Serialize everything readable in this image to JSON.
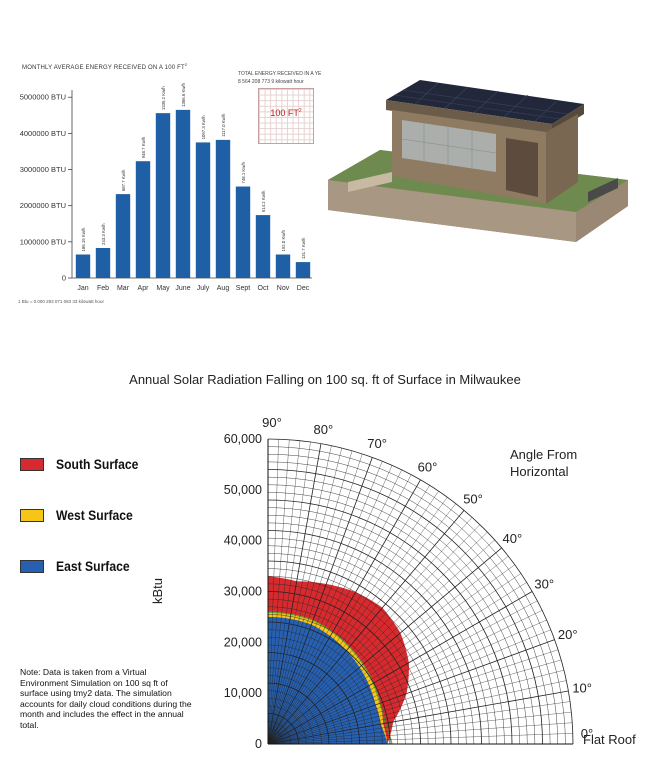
{
  "chart_data": [
    {
      "type": "bar",
      "title": "MONTHLY AVERAGE ENERGY RECEIVED ON A 100 FT",
      "title_superscript": "2",
      "categories": [
        "Jan",
        "Feb",
        "Mar",
        "Apr",
        "May",
        "June",
        "July",
        "Aug",
        "Sept",
        "Oct",
        "Nov",
        "Dec"
      ],
      "values": [
        650000,
        830000,
        2320000,
        3230000,
        4560000,
        4650000,
        3750000,
        3820000,
        2530000,
        1740000,
        650000,
        440000
      ],
      "data_labels": [
        "186.19 Kw/h",
        "243.3 Kw/h",
        "687.7 Kw/h",
        "948.7 Kw/h",
        "1335.2 Kw/h",
        "1366.6 Kw/h",
        "1097.3 Kw/h",
        "1117.0 Kw/h",
        "748.1 Kw/h",
        "514.2 Kw/h",
        "192.0 Kw/h",
        "131.7 Kw/h"
      ],
      "yticks": [
        "5000000 BTU",
        "4000000 BTU",
        "3000000 BTU",
        "2000000 BTU",
        "1000000 BTU",
        "0"
      ],
      "ytick_values": [
        5000000,
        4000000,
        3000000,
        2000000,
        1000000,
        0
      ],
      "ylim": [
        0,
        5200000
      ],
      "bar_color": "#1f5fa6",
      "footnote": "1 Btu = 0.000 293 071 083 33 kilowatt hour",
      "inset": {
        "line1": "TOTAL ENERGY RECEIVED IN A YE",
        "line2": "8 564 208 773 9 kilowatt hour",
        "box_label": "100 FT",
        "box_label_sup": "2"
      }
    },
    {
      "type": "polar-area",
      "title": "Annual Solar Radiation Falling on 100 sq. ft of Surface in Milwaukee",
      "ylabel": "kBtu",
      "radial_ticks": [
        "60,000",
        "50,000",
        "40,000",
        "30,000",
        "20,000",
        "10,000",
        "0"
      ],
      "radial_tick_values": [
        60000,
        50000,
        40000,
        30000,
        20000,
        10000,
        0
      ],
      "rmax": 60000,
      "angle_ticks": [
        "90°",
        "80°",
        "70°",
        "60°",
        "50°",
        "40°",
        "30°",
        "20°",
        "10°",
        "0°"
      ],
      "angle_tick_values": [
        90,
        80,
        70,
        60,
        50,
        40,
        30,
        20,
        10,
        0
      ],
      "corner_label_1": "Angle From",
      "corner_label_2": "Horizontal",
      "flat_label": "Flat Roof",
      "angles": [
        0,
        10,
        20,
        30,
        40,
        50,
        60,
        70,
        80,
        90
      ],
      "series": [
        {
          "name": "South Surface",
          "color": "#d62a2e",
          "values": [
            23500,
            25000,
            29000,
            32000,
            34000,
            35000,
            34500,
            33500,
            32500,
            33000
          ]
        },
        {
          "name": "West Surface",
          "color": "#f5c518",
          "values": [
            23500,
            23000,
            23500,
            24000,
            24500,
            25000,
            25500,
            26000,
            26000,
            26000
          ]
        },
        {
          "name": "East Surface",
          "color": "#2760b0",
          "values": [
            23500,
            22500,
            22500,
            23000,
            23500,
            24000,
            24500,
            25000,
            25000,
            25000
          ]
        }
      ]
    }
  ],
  "note": "Note:  Data is taken from a Virtual Environment Simulation on 100 sq ft of surface using tmy2 data.  The simulation accounts for daily cloud conditions during the month and includes the effect in the annual total."
}
